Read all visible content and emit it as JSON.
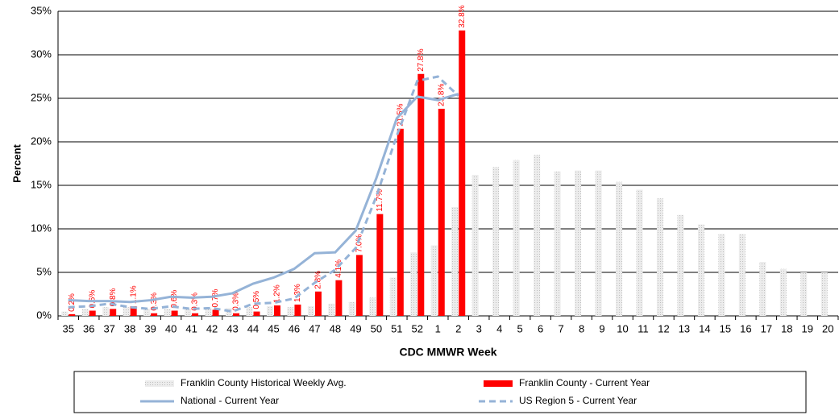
{
  "chart_data": {
    "type": "bar_line",
    "xlabel": "CDC MMWR Week",
    "ylabel": "Percent",
    "categories": [
      "35",
      "36",
      "37",
      "38",
      "39",
      "40",
      "41",
      "42",
      "43",
      "44",
      "45",
      "46",
      "47",
      "48",
      "49",
      "50",
      "51",
      "52",
      "1",
      "2",
      "3",
      "4",
      "5",
      "6",
      "7",
      "8",
      "9",
      "10",
      "11",
      "12",
      "13",
      "14",
      "15",
      "16",
      "17",
      "18",
      "19",
      "20"
    ],
    "ylim": [
      0,
      35
    ],
    "yticks": [
      {
        "value": 0,
        "label": "0%"
      },
      {
        "value": 5,
        "label": "5%"
      },
      {
        "value": 10,
        "label": "10%"
      },
      {
        "value": 15,
        "label": "15%"
      },
      {
        "value": 20,
        "label": "20%"
      },
      {
        "value": 25,
        "label": "25%"
      },
      {
        "value": 30,
        "label": "30%"
      },
      {
        "value": 35,
        "label": "35%"
      }
    ],
    "grid": true,
    "series": [
      {
        "name": "Franklin County Historical Weekly Avg.",
        "kind": "bar",
        "color": "#d9d9d9",
        "values": [
          0.5,
          0.8,
          1.0,
          1.0,
          0.8,
          0.8,
          0.8,
          0.9,
          0.9,
          1.0,
          1.1,
          1.0,
          1.1,
          1.4,
          1.6,
          2.1,
          4.4,
          7.3,
          8.1,
          12.5,
          16.2,
          17.1,
          17.9,
          18.5,
          16.6,
          16.7,
          16.7,
          15.4,
          14.5,
          13.5,
          11.6,
          10.5,
          9.4,
          9.4,
          6.2,
          5.4,
          5.0,
          5.0
        ]
      },
      {
        "name": "Franklin County - Current Year",
        "kind": "bar",
        "color": "#ff0000",
        "values": [
          0.2,
          0.6,
          0.8,
          1.1,
          0.3,
          0.6,
          0.3,
          0.7,
          0.3,
          0.5,
          1.2,
          1.3,
          2.8,
          4.1,
          7.0,
          11.7,
          21.5,
          27.8,
          23.8,
          32.8,
          null,
          null,
          null,
          null,
          null,
          null,
          null,
          null,
          null,
          null,
          null,
          null,
          null,
          null,
          null,
          null,
          null,
          null
        ],
        "value_labels": [
          "0.2%",
          "0.6%",
          "0.8%",
          "1.1%",
          "0.3%",
          "0.6%",
          "0.3%",
          "0.7%",
          "0.3%",
          "0.5%",
          "1.2%",
          "1.3%",
          "2.8%",
          "4.1%",
          "7.0%",
          "11.7%",
          "21.5%",
          "27.8%",
          "23.8%",
          "32.8%",
          null,
          null,
          null,
          null,
          null,
          null,
          null,
          null,
          null,
          null,
          null,
          null,
          null,
          null,
          null,
          null,
          null,
          null
        ]
      },
      {
        "name": "National - Current Year",
        "kind": "line",
        "color": "#95b3d7",
        "dash": false,
        "values": [
          1.8,
          1.7,
          1.7,
          1.6,
          1.8,
          2.2,
          2.1,
          2.2,
          2.6,
          3.7,
          4.4,
          5.4,
          7.2,
          7.3,
          9.8,
          15.8,
          22.7,
          25.2,
          24.8,
          25.5,
          null,
          null,
          null,
          null,
          null,
          null,
          null,
          null,
          null,
          null,
          null,
          null,
          null,
          null,
          null,
          null,
          null,
          null
        ]
      },
      {
        "name": "US Region 5 - Current Year",
        "kind": "line",
        "color": "#95b3d7",
        "dash": true,
        "values": [
          1.0,
          1.1,
          1.4,
          1.0,
          0.8,
          1.1,
          0.8,
          0.9,
          0.5,
          1.4,
          1.5,
          2.0,
          3.8,
          5.3,
          7.8,
          13.7,
          20.7,
          27.0,
          27.5,
          25.3,
          null,
          null,
          null,
          null,
          null,
          null,
          null,
          null,
          null,
          null,
          null,
          null,
          null,
          null,
          null,
          null,
          null,
          null
        ]
      }
    ]
  }
}
